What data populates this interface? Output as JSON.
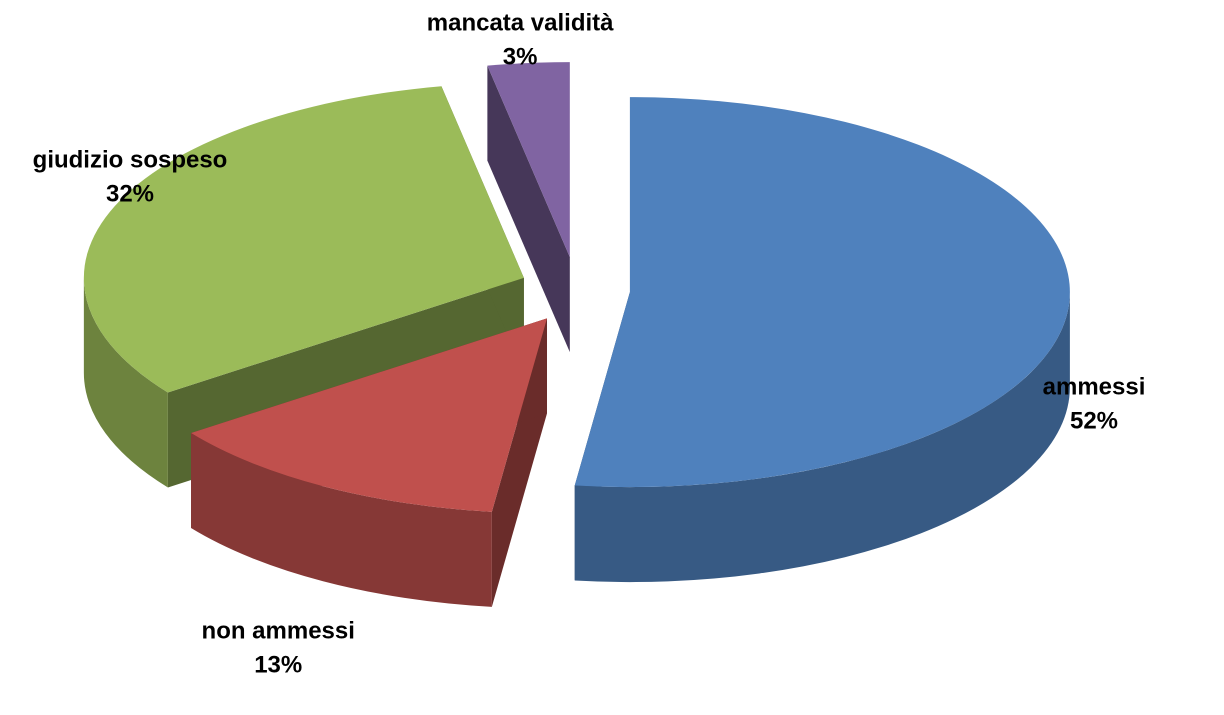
{
  "chart_data": {
    "type": "pie",
    "categories": [
      "ammessi",
      "non ammessi",
      "giudizio sospeso",
      "mancata validità"
    ],
    "values": [
      52,
      13,
      32,
      3
    ],
    "value_labels": [
      "52%",
      "13%",
      "32%",
      "3%"
    ],
    "colors": [
      "#4f81bd",
      "#c0504d",
      "#9bbb59",
      "#8064a2"
    ]
  }
}
